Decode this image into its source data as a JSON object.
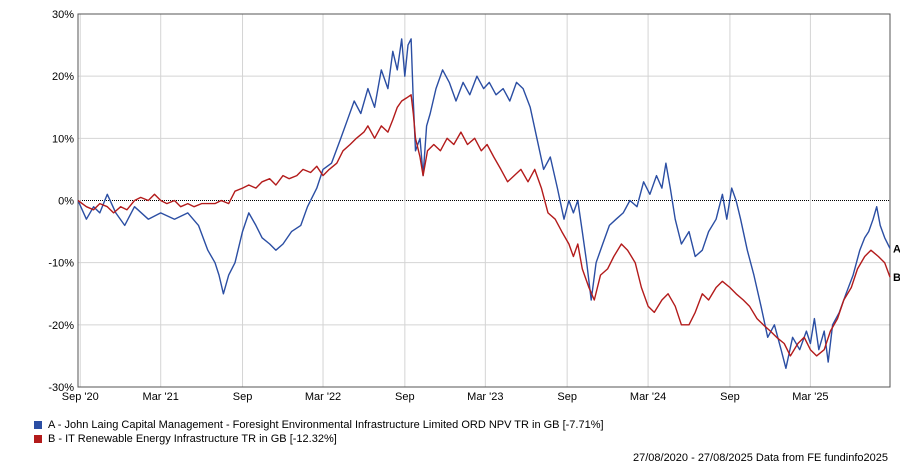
{
  "chart_data": {
    "type": "line",
    "title": "",
    "xlabel": "",
    "ylabel": "",
    "ylim": [
      -30,
      30
    ],
    "y_ticks": [
      30,
      20,
      10,
      0,
      -10,
      -20,
      -30
    ],
    "y_tick_labels": [
      "30%",
      "20%",
      "10%",
      "0%",
      "-10%",
      "-20%",
      "-30%"
    ],
    "x_range": [
      "2020-08-27",
      "2025-08-27"
    ],
    "x_ticks": [
      {
        "date": "2020-09-01",
        "label": "Sep '20"
      },
      {
        "date": "2021-03-01",
        "label": "Mar '21"
      },
      {
        "date": "2021-09-01",
        "label": "Sep"
      },
      {
        "date": "2022-03-01",
        "label": "Mar '22"
      },
      {
        "date": "2022-09-01",
        "label": "Sep"
      },
      {
        "date": "2023-03-01",
        "label": "Mar '23"
      },
      {
        "date": "2023-09-01",
        "label": "Sep"
      },
      {
        "date": "2024-03-01",
        "label": "Mar '24"
      },
      {
        "date": "2024-09-01",
        "label": "Sep"
      },
      {
        "date": "2025-03-01",
        "label": "Mar '25"
      }
    ],
    "grid": true,
    "zero_line": "dotted",
    "legend_position": "bottom-left",
    "series": [
      {
        "name": "A - John Laing Capital Management - Foresight Environmental Infrastructure Limited ORD NPV TR in GB [-7.71%]",
        "end_label": "A",
        "color": "#2b4ea3",
        "points": [
          [
            "2020-08-27",
            0
          ],
          [
            "2020-09-15",
            -3
          ],
          [
            "2020-10-01",
            -1
          ],
          [
            "2020-10-15",
            -2
          ],
          [
            "2020-11-01",
            1
          ],
          [
            "2020-11-20",
            -2
          ],
          [
            "2020-12-10",
            -4
          ],
          [
            "2021-01-01",
            -1
          ],
          [
            "2021-02-01",
            -3
          ],
          [
            "2021-03-01",
            -2
          ],
          [
            "2021-04-01",
            -3
          ],
          [
            "2021-05-01",
            -2
          ],
          [
            "2021-05-25",
            -4
          ],
          [
            "2021-06-15",
            -8
          ],
          [
            "2021-07-01",
            -10
          ],
          [
            "2021-07-10",
            -12
          ],
          [
            "2021-07-20",
            -15
          ],
          [
            "2021-08-01",
            -12
          ],
          [
            "2021-08-15",
            -10
          ],
          [
            "2021-09-01",
            -5
          ],
          [
            "2021-09-15",
            -2
          ],
          [
            "2021-10-01",
            -4
          ],
          [
            "2021-10-15",
            -6
          ],
          [
            "2021-11-01",
            -7
          ],
          [
            "2021-11-15",
            -8
          ],
          [
            "2021-12-01",
            -7
          ],
          [
            "2021-12-20",
            -5
          ],
          [
            "2022-01-10",
            -4
          ],
          [
            "2022-01-25",
            -1
          ],
          [
            "2022-02-15",
            2
          ],
          [
            "2022-03-01",
            5
          ],
          [
            "2022-03-20",
            6
          ],
          [
            "2022-04-10",
            10
          ],
          [
            "2022-04-25",
            13
          ],
          [
            "2022-05-10",
            16
          ],
          [
            "2022-05-25",
            14
          ],
          [
            "2022-06-10",
            18
          ],
          [
            "2022-06-25",
            15
          ],
          [
            "2022-07-10",
            21
          ],
          [
            "2022-07-25",
            18
          ],
          [
            "2022-08-05",
            24
          ],
          [
            "2022-08-15",
            21
          ],
          [
            "2022-08-25",
            26
          ],
          [
            "2022-09-01",
            20
          ],
          [
            "2022-09-08",
            25
          ],
          [
            "2022-09-15",
            26
          ],
          [
            "2022-09-20",
            16
          ],
          [
            "2022-09-25",
            8
          ],
          [
            "2022-10-05",
            10
          ],
          [
            "2022-10-12",
            4
          ],
          [
            "2022-10-20",
            12
          ],
          [
            "2022-10-28",
            14
          ],
          [
            "2022-11-10",
            18
          ],
          [
            "2022-11-25",
            21
          ],
          [
            "2022-12-10",
            19
          ],
          [
            "2022-12-25",
            16
          ],
          [
            "2023-01-10",
            19
          ],
          [
            "2023-01-25",
            17
          ],
          [
            "2023-02-10",
            20
          ],
          [
            "2023-02-25",
            18
          ],
          [
            "2023-03-10",
            19
          ],
          [
            "2023-03-25",
            17
          ],
          [
            "2023-04-10",
            18
          ],
          [
            "2023-04-25",
            16
          ],
          [
            "2023-05-10",
            19
          ],
          [
            "2023-05-25",
            18
          ],
          [
            "2023-06-10",
            15
          ],
          [
            "2023-06-25",
            10
          ],
          [
            "2023-07-10",
            5
          ],
          [
            "2023-07-25",
            7
          ],
          [
            "2023-08-10",
            2
          ],
          [
            "2023-08-25",
            -3
          ],
          [
            "2023-09-05",
            0
          ],
          [
            "2023-09-15",
            -2
          ],
          [
            "2023-09-25",
            0
          ],
          [
            "2023-10-05",
            -5
          ],
          [
            "2023-10-15",
            -10
          ],
          [
            "2023-10-25",
            -16
          ],
          [
            "2023-11-05",
            -10
          ],
          [
            "2023-11-20",
            -7
          ],
          [
            "2023-12-05",
            -4
          ],
          [
            "2023-12-20",
            -3
          ],
          [
            "2024-01-05",
            -2
          ],
          [
            "2024-01-20",
            0
          ],
          [
            "2024-02-05",
            -1
          ],
          [
            "2024-02-20",
            3
          ],
          [
            "2024-03-05",
            1
          ],
          [
            "2024-03-20",
            4
          ],
          [
            "2024-04-01",
            2
          ],
          [
            "2024-04-10",
            6
          ],
          [
            "2024-04-20",
            2
          ],
          [
            "2024-05-01",
            -3
          ],
          [
            "2024-05-15",
            -7
          ],
          [
            "2024-06-01",
            -5
          ],
          [
            "2024-06-15",
            -9
          ],
          [
            "2024-07-01",
            -8
          ],
          [
            "2024-07-15",
            -5
          ],
          [
            "2024-08-01",
            -3
          ],
          [
            "2024-08-15",
            1
          ],
          [
            "2024-08-25",
            -3
          ],
          [
            "2024-09-05",
            2
          ],
          [
            "2024-09-15",
            0
          ],
          [
            "2024-09-25",
            -3
          ],
          [
            "2024-10-10",
            -8
          ],
          [
            "2024-10-25",
            -12
          ],
          [
            "2024-11-10",
            -17
          ],
          [
            "2024-11-25",
            -22
          ],
          [
            "2024-12-10",
            -20
          ],
          [
            "2024-12-25",
            -24
          ],
          [
            "2025-01-05",
            -27
          ],
          [
            "2025-01-20",
            -22
          ],
          [
            "2025-02-05",
            -24
          ],
          [
            "2025-02-20",
            -21
          ],
          [
            "2025-03-01",
            -23
          ],
          [
            "2025-03-10",
            -19
          ],
          [
            "2025-03-20",
            -24
          ],
          [
            "2025-04-01",
            -21
          ],
          [
            "2025-04-10",
            -26
          ],
          [
            "2025-04-20",
            -20
          ],
          [
            "2025-05-05",
            -18
          ],
          [
            "2025-05-20",
            -15
          ],
          [
            "2025-06-05",
            -12
          ],
          [
            "2025-06-20",
            -8
          ],
          [
            "2025-07-01",
            -6
          ],
          [
            "2025-07-10",
            -5
          ],
          [
            "2025-07-20",
            -3
          ],
          [
            "2025-07-28",
            -1
          ],
          [
            "2025-08-05",
            -4
          ],
          [
            "2025-08-15",
            -6
          ],
          [
            "2025-08-27",
            -7.71
          ]
        ]
      },
      {
        "name": "B - IT Renewable Energy Infrastructure TR in GB [-12.32%]",
        "end_label": "B",
        "color": "#b31b1b",
        "points": [
          [
            "2020-08-27",
            0
          ],
          [
            "2020-09-15",
            -1
          ],
          [
            "2020-10-01",
            -1.5
          ],
          [
            "2020-10-15",
            -0.5
          ],
          [
            "2020-11-01",
            -1
          ],
          [
            "2020-11-15",
            -2
          ],
          [
            "2020-12-01",
            -1
          ],
          [
            "2020-12-15",
            -1.5
          ],
          [
            "2021-01-01",
            0
          ],
          [
            "2021-01-15",
            0.5
          ],
          [
            "2021-02-01",
            0
          ],
          [
            "2021-02-15",
            1
          ],
          [
            "2021-03-01",
            0
          ],
          [
            "2021-03-15",
            -0.5
          ],
          [
            "2021-04-01",
            0
          ],
          [
            "2021-04-15",
            -1
          ],
          [
            "2021-05-01",
            -0.5
          ],
          [
            "2021-05-15",
            -1
          ],
          [
            "2021-06-01",
            -0.5
          ],
          [
            "2021-06-15",
            -0.5
          ],
          [
            "2021-07-01",
            -0.5
          ],
          [
            "2021-07-15",
            0
          ],
          [
            "2021-08-01",
            -0.5
          ],
          [
            "2021-08-15",
            1.5
          ],
          [
            "2021-09-01",
            2
          ],
          [
            "2021-09-15",
            2.5
          ],
          [
            "2021-10-01",
            2
          ],
          [
            "2021-10-15",
            3
          ],
          [
            "2021-11-01",
            3.5
          ],
          [
            "2021-11-15",
            2.5
          ],
          [
            "2021-12-01",
            4
          ],
          [
            "2021-12-15",
            3.5
          ],
          [
            "2022-01-01",
            4
          ],
          [
            "2022-01-15",
            5
          ],
          [
            "2022-02-01",
            4.5
          ],
          [
            "2022-02-15",
            5.5
          ],
          [
            "2022-03-01",
            4
          ],
          [
            "2022-03-15",
            5
          ],
          [
            "2022-04-01",
            6
          ],
          [
            "2022-04-15",
            8
          ],
          [
            "2022-05-01",
            9
          ],
          [
            "2022-05-15",
            10
          ],
          [
            "2022-06-01",
            11
          ],
          [
            "2022-06-10",
            12
          ],
          [
            "2022-06-25",
            10
          ],
          [
            "2022-07-10",
            12
          ],
          [
            "2022-07-25",
            11
          ],
          [
            "2022-08-05",
            13
          ],
          [
            "2022-08-15",
            15
          ],
          [
            "2022-08-25",
            16
          ],
          [
            "2022-09-05",
            16.5
          ],
          [
            "2022-09-15",
            17
          ],
          [
            "2022-09-20",
            14
          ],
          [
            "2022-09-25",
            10
          ],
          [
            "2022-10-05",
            7
          ],
          [
            "2022-10-12",
            4
          ],
          [
            "2022-10-22",
            8
          ],
          [
            "2022-11-05",
            9
          ],
          [
            "2022-11-20",
            8
          ],
          [
            "2022-12-05",
            10
          ],
          [
            "2022-12-20",
            9
          ],
          [
            "2023-01-05",
            11
          ],
          [
            "2023-01-20",
            9
          ],
          [
            "2023-02-05",
            10
          ],
          [
            "2023-02-20",
            8
          ],
          [
            "2023-03-05",
            9
          ],
          [
            "2023-03-20",
            7
          ],
          [
            "2023-04-05",
            5
          ],
          [
            "2023-04-20",
            3
          ],
          [
            "2023-05-05",
            4
          ],
          [
            "2023-05-20",
            5
          ],
          [
            "2023-06-05",
            3
          ],
          [
            "2023-06-20",
            5
          ],
          [
            "2023-07-05",
            2
          ],
          [
            "2023-07-20",
            -2
          ],
          [
            "2023-08-05",
            -3
          ],
          [
            "2023-08-20",
            -5
          ],
          [
            "2023-09-05",
            -7
          ],
          [
            "2023-09-15",
            -9
          ],
          [
            "2023-09-25",
            -7
          ],
          [
            "2023-10-05",
            -11
          ],
          [
            "2023-10-20",
            -14
          ],
          [
            "2023-11-01",
            -16
          ],
          [
            "2023-11-15",
            -12
          ],
          [
            "2023-12-01",
            -11
          ],
          [
            "2023-12-15",
            -9
          ],
          [
            "2024-01-01",
            -7
          ],
          [
            "2024-01-15",
            -8
          ],
          [
            "2024-02-01",
            -10
          ],
          [
            "2024-02-15",
            -14
          ],
          [
            "2024-03-01",
            -17
          ],
          [
            "2024-03-15",
            -18
          ],
          [
            "2024-04-01",
            -16
          ],
          [
            "2024-04-15",
            -15
          ],
          [
            "2024-05-01",
            -17
          ],
          [
            "2024-05-15",
            -20
          ],
          [
            "2024-06-01",
            -20
          ],
          [
            "2024-06-15",
            -18
          ],
          [
            "2024-07-01",
            -15
          ],
          [
            "2024-07-15",
            -16
          ],
          [
            "2024-08-01",
            -14
          ],
          [
            "2024-08-15",
            -13
          ],
          [
            "2024-09-01",
            -14
          ],
          [
            "2024-09-15",
            -15
          ],
          [
            "2024-10-01",
            -16
          ],
          [
            "2024-10-15",
            -17
          ],
          [
            "2024-11-01",
            -19
          ],
          [
            "2024-11-15",
            -20
          ],
          [
            "2024-12-01",
            -21
          ],
          [
            "2024-12-15",
            -22
          ],
          [
            "2025-01-01",
            -23
          ],
          [
            "2025-01-15",
            -25
          ],
          [
            "2025-02-01",
            -23
          ],
          [
            "2025-02-15",
            -22
          ],
          [
            "2025-03-01",
            -24
          ],
          [
            "2025-03-15",
            -25
          ],
          [
            "2025-04-01",
            -24
          ],
          [
            "2025-04-15",
            -21
          ],
          [
            "2025-05-01",
            -19
          ],
          [
            "2025-05-15",
            -16
          ],
          [
            "2025-06-01",
            -14
          ],
          [
            "2025-06-15",
            -11
          ],
          [
            "2025-07-01",
            -9
          ],
          [
            "2025-07-15",
            -8
          ],
          [
            "2025-08-01",
            -9
          ],
          [
            "2025-08-15",
            -10
          ],
          [
            "2025-08-27",
            -12.32
          ]
        ]
      }
    ]
  },
  "legend": {
    "items": [
      {
        "label": "A - John Laing Capital Management - Foresight Environmental Infrastructure Limited ORD NPV TR in GB [-7.71%]",
        "color": "#2b4ea3"
      },
      {
        "label": "B - IT Renewable Energy Infrastructure TR in GB [-12.32%]",
        "color": "#b31b1b"
      }
    ]
  },
  "footer": {
    "text": "27/08/2020 - 27/08/2025 Data from FE fundinfo2025"
  }
}
